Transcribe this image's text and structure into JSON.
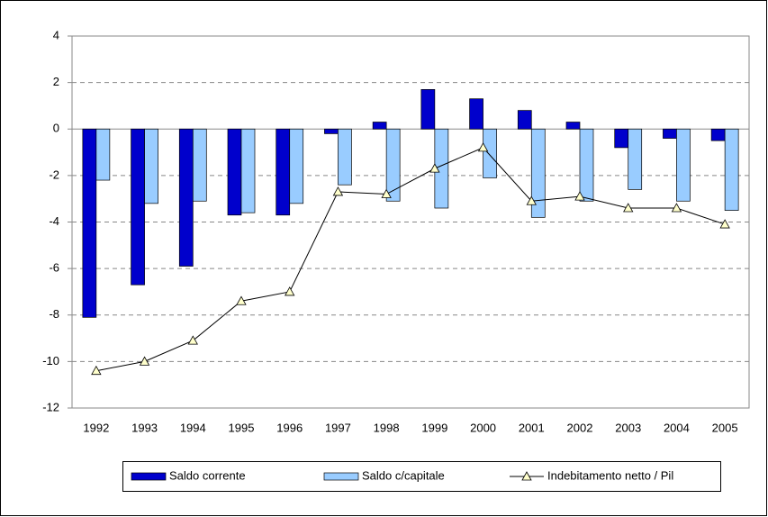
{
  "chart_data": {
    "type": "bar",
    "categories": [
      "1992",
      "1993",
      "1994",
      "1995",
      "1996",
      "1997",
      "1998",
      "1999",
      "2000",
      "2001",
      "2002",
      "2003",
      "2004",
      "2005"
    ],
    "series": [
      {
        "name": "Saldo corrente",
        "type": "bar",
        "color": "#0000cc",
        "values": [
          -8.1,
          -6.7,
          -5.9,
          -3.7,
          -3.7,
          -0.2,
          0.3,
          1.7,
          1.3,
          0.8,
          0.3,
          -0.8,
          -0.4,
          -0.5
        ]
      },
      {
        "name": "Saldo c/capitale",
        "type": "bar",
        "color": "#99ccff",
        "values": [
          -2.2,
          -3.2,
          -3.1,
          -3.6,
          -3.2,
          -2.4,
          -3.1,
          -3.4,
          -2.1,
          -3.8,
          -3.1,
          -2.6,
          -3.1,
          -3.5
        ]
      },
      {
        "name": "Indebitamento netto / Pil",
        "type": "line",
        "color": "#000000",
        "marker_color": "#ffffcc",
        "values": [
          -10.4,
          -10.0,
          -9.1,
          -7.4,
          -7.0,
          -2.7,
          -2.8,
          -1.7,
          -0.8,
          -3.1,
          -2.9,
          -3.4,
          -3.4,
          -4.1
        ]
      }
    ],
    "ylim": [
      -12,
      4
    ],
    "yticks": [
      -12,
      -10,
      -8,
      -6,
      -4,
      -2,
      0,
      2,
      4
    ],
    "grid": true,
    "legend": "bottom"
  }
}
